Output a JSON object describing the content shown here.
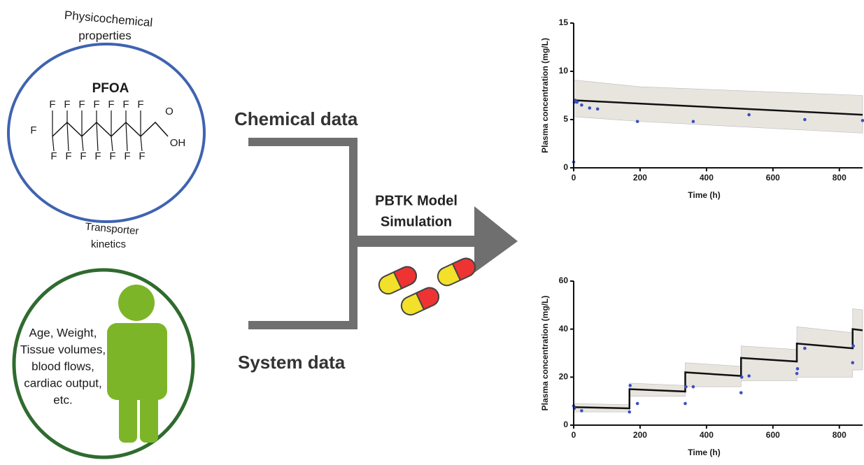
{
  "physchem_label": [
    "Physicochemical",
    "properties"
  ],
  "compound": {
    "name": "PFOA",
    "atoms": [
      "F",
      "F",
      "F",
      "F",
      "F",
      "F",
      "F",
      "F",
      "F",
      "F",
      "F",
      "F",
      "F",
      "F",
      "F",
      "O",
      "OH"
    ]
  },
  "transporter_label": [
    "Transporter",
    "kinetics"
  ],
  "system_text": [
    "Age, Weight,",
    "Tissue volumes,",
    "blood flows,",
    "cardiac output,",
    "etc."
  ],
  "chemical_data": "Chemical data",
  "system_data": "System data",
  "arrow_label": [
    "PBTK Model",
    "Simulation"
  ],
  "chart_data": [
    {
      "type": "line",
      "ylabel": "Plasma concentration (mg/L)",
      "xlabel": "Time (h)",
      "xlim": [
        0,
        870
      ],
      "xticks": [
        0,
        200,
        400,
        600,
        800
      ],
      "ylim": [
        0,
        15
      ],
      "yticks": [
        0,
        5,
        10,
        15
      ],
      "band": {
        "color": "#e8e5df",
        "x": [
          0,
          200,
          870
        ],
        "lower": [
          5.3,
          4.8,
          3.6
        ],
        "upper": [
          9.1,
          8.4,
          7.5
        ]
      },
      "model": {
        "color": "#111111",
        "x": [
          0,
          870
        ],
        "values": [
          7.0,
          5.5
        ]
      },
      "observed": {
        "color": "#3b4fc4",
        "x": [
          0,
          2,
          5,
          10,
          24,
          48,
          72,
          192,
          360,
          528,
          696,
          870
        ],
        "values": [
          0.6,
          6.8,
          7.0,
          6.8,
          6.5,
          6.2,
          6.1,
          4.8,
          4.8,
          5.5,
          5.0,
          4.9
        ]
      }
    },
    {
      "type": "line",
      "ylabel": "Plasma concentration (mg/L)",
      "xlabel": "Time (h)",
      "xlim": [
        0,
        870
      ],
      "xticks": [
        0,
        200,
        400,
        600,
        800
      ],
      "ylim": [
        0,
        60
      ],
      "yticks": [
        0,
        20,
        40,
        60
      ],
      "band": {
        "color": "#e8e5df",
        "x": [
          0,
          168,
          168,
          336,
          336,
          504,
          504,
          672,
          672,
          840,
          840,
          870
        ],
        "lower": [
          5.5,
          5.5,
          12,
          12,
          16,
          16,
          18.5,
          18.5,
          20,
          20,
          23,
          23
        ],
        "upper": [
          9,
          8.5,
          17.5,
          16.5,
          26,
          24.5,
          33,
          31.5,
          41,
          38.5,
          48.5,
          48
        ]
      },
      "model": {
        "color": "#111111",
        "x": [
          0,
          168,
          168,
          336,
          336,
          504,
          504,
          672,
          672,
          840,
          840,
          870
        ],
        "values": [
          7.5,
          7.0,
          15,
          14,
          22,
          20.5,
          28,
          26.5,
          34,
          32,
          40,
          39.5
        ]
      },
      "observed": {
        "color": "#3b4fc4",
        "x": [
          0,
          2,
          24,
          168,
          170,
          192,
          336,
          338,
          360,
          504,
          506,
          528,
          672,
          674,
          696,
          840,
          842
        ],
        "values": [
          8,
          7,
          6,
          5.5,
          16.5,
          9,
          9,
          16,
          16,
          13.5,
          20,
          20.5,
          21.5,
          23.5,
          32,
          26,
          33
        ]
      }
    }
  ]
}
